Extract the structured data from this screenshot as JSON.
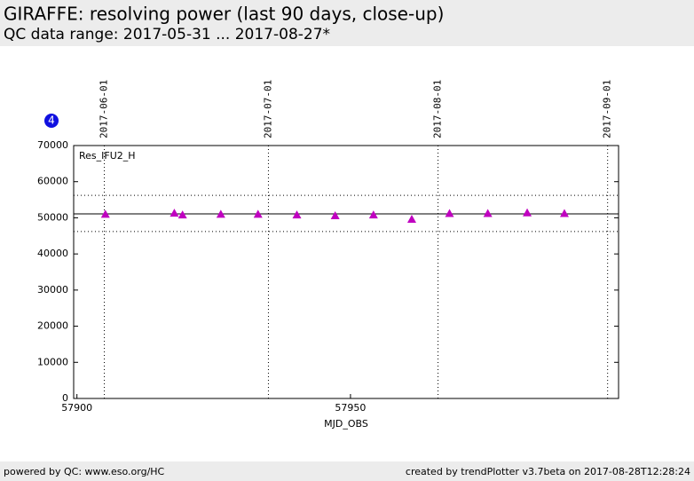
{
  "header": {
    "title": "GIRAFFE: resolving power (last 90 days, close-up)",
    "subtitle": "QC data range: 2017-05-31 ... 2017-08-27*"
  },
  "badge": "4",
  "chart_data": {
    "type": "scatter",
    "series_label": "Res_IFU2_H",
    "xlabel": "MJD_OBS",
    "x": [
      57905.2,
      57917.8,
      57919.3,
      57926.3,
      57933.1,
      57940.2,
      57947.2,
      57954.2,
      57961.2,
      57968.1,
      57975.1,
      57982.3,
      57989.1
    ],
    "values": [
      51000,
      51300,
      50800,
      51000,
      51000,
      50800,
      50600,
      50800,
      49600,
      51200,
      51200,
      51400,
      51200
    ],
    "color": "#c000c0",
    "xlim": [
      57899.4,
      57999.0
    ],
    "xticks": [
      57900,
      57950
    ],
    "ylim": [
      0,
      70000
    ],
    "yticks": [
      0,
      10000,
      20000,
      30000,
      40000,
      50000,
      60000,
      70000
    ],
    "x2ticks": [
      {
        "value": 57905,
        "label": "2017-06-01"
      },
      {
        "value": 57935,
        "label": "2017-07-01"
      },
      {
        "value": 57966,
        "label": "2017-08-01"
      },
      {
        "value": 57997,
        "label": "2017-09-01"
      }
    ],
    "reference_lines": [
      {
        "value": 51100,
        "style": "solid"
      },
      {
        "value": 56200,
        "style": "dotted"
      },
      {
        "value": 46200,
        "style": "dotted"
      }
    ]
  },
  "footer": {
    "left": "powered by QC: www.eso.org/HC",
    "right": "created by trendPlotter v3.7beta on 2017-08-28T12:28:24"
  }
}
